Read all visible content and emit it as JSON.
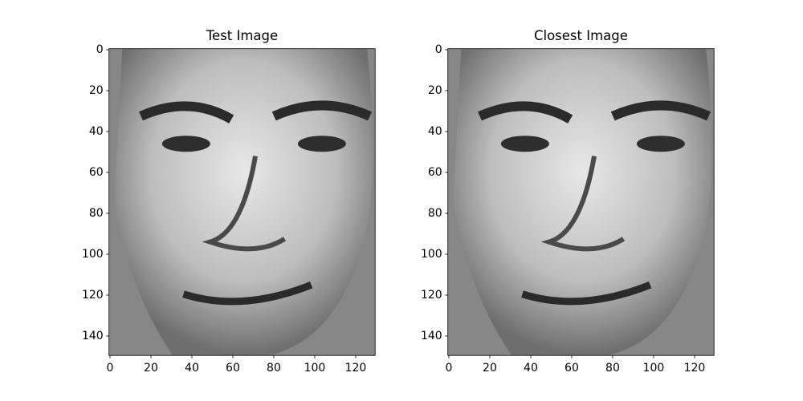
{
  "chart_data": [
    {
      "type": "image",
      "title": "Test Image",
      "xlim": [
        -0.5,
        129.5
      ],
      "ylim": [
        149.5,
        -0.5
      ],
      "xticks": [
        0,
        20,
        40,
        60,
        80,
        100,
        120
      ],
      "yticks": [
        0,
        20,
        40,
        60,
        80,
        100,
        120,
        140
      ]
    },
    {
      "type": "image",
      "title": "Closest Image",
      "xlim": [
        -0.5,
        129.5
      ],
      "ylim": [
        149.5,
        -0.5
      ],
      "xticks": [
        0,
        20,
        40,
        60,
        80,
        100,
        120
      ],
      "yticks": [
        0,
        20,
        40,
        60,
        80,
        100,
        120,
        140
      ]
    }
  ]
}
